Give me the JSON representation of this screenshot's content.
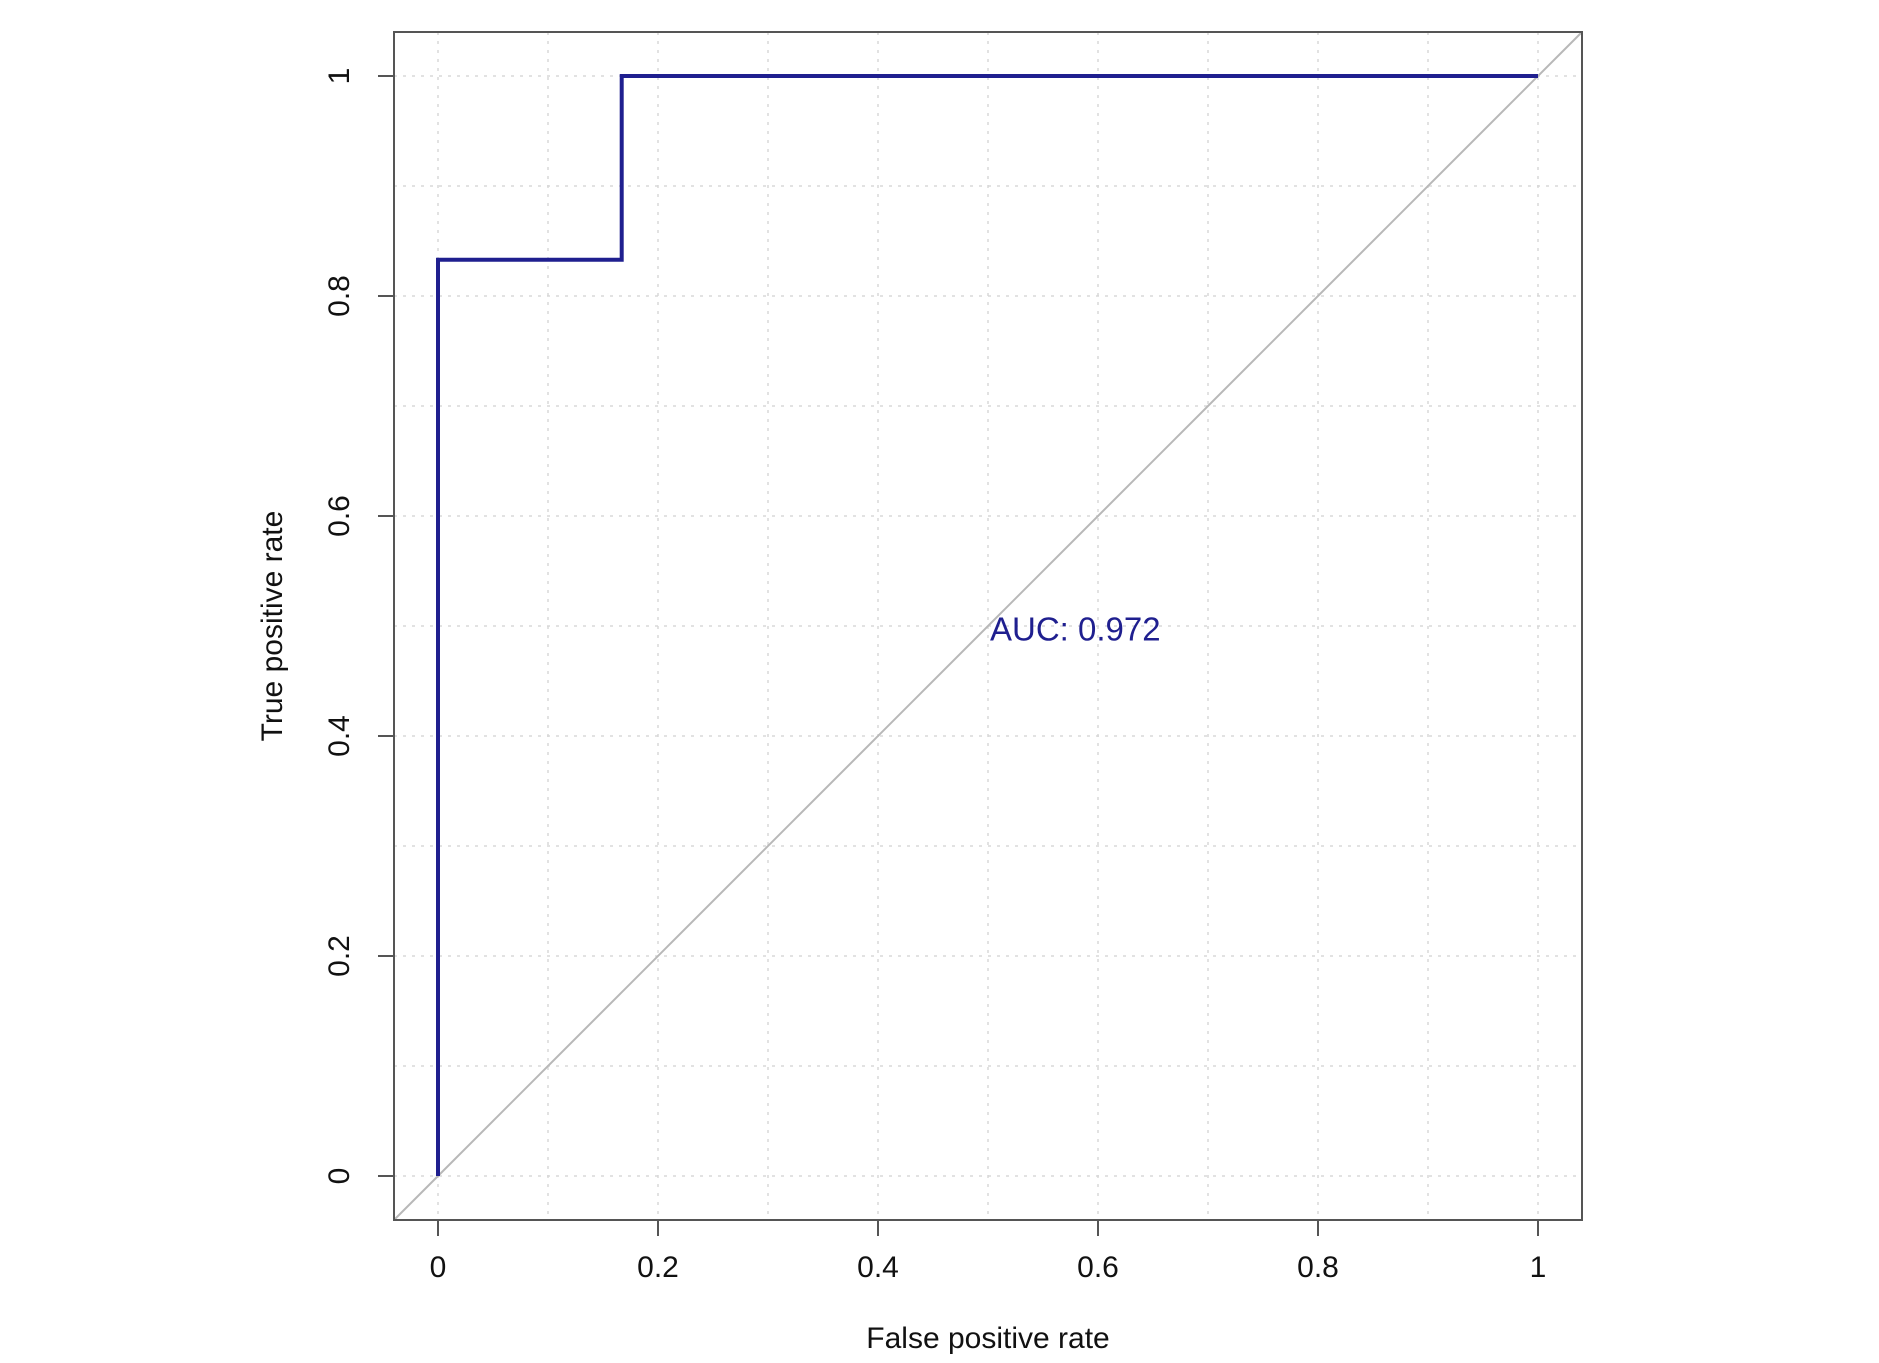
{
  "chart_data": {
    "type": "line",
    "xlabel": "False positive rate",
    "ylabel": "True positive rate",
    "xlim": [
      -0.04,
      1.04
    ],
    "ylim": [
      -0.04,
      1.04
    ],
    "x_ticks": [
      0,
      0.2,
      0.4,
      0.6,
      0.8,
      1
    ],
    "x_tick_labels": [
      "0",
      "0.2",
      "0.4",
      "0.6",
      "0.8",
      "1"
    ],
    "y_ticks": [
      0,
      0.2,
      0.4,
      0.6,
      0.8,
      1
    ],
    "y_tick_labels": [
      "0",
      "0.2",
      "0.4",
      "0.6",
      "0.8",
      "1"
    ],
    "grid": true,
    "grid_step": 0.1,
    "series": [
      {
        "x": [
          0,
          0,
          0.167,
          0.167,
          1
        ],
        "y": [
          0,
          0.833,
          0.833,
          1,
          1
        ],
        "color": "#1f1f8f"
      }
    ],
    "reference_line": {
      "x": [
        -0.04,
        1.04
      ],
      "y": [
        -0.04,
        1.04
      ],
      "color": "#b8b8b8"
    },
    "annotations": [
      {
        "text": "AUC: 0.972",
        "x": 0.5,
        "y": 0.485,
        "color": "#1f1f8f"
      }
    ]
  }
}
